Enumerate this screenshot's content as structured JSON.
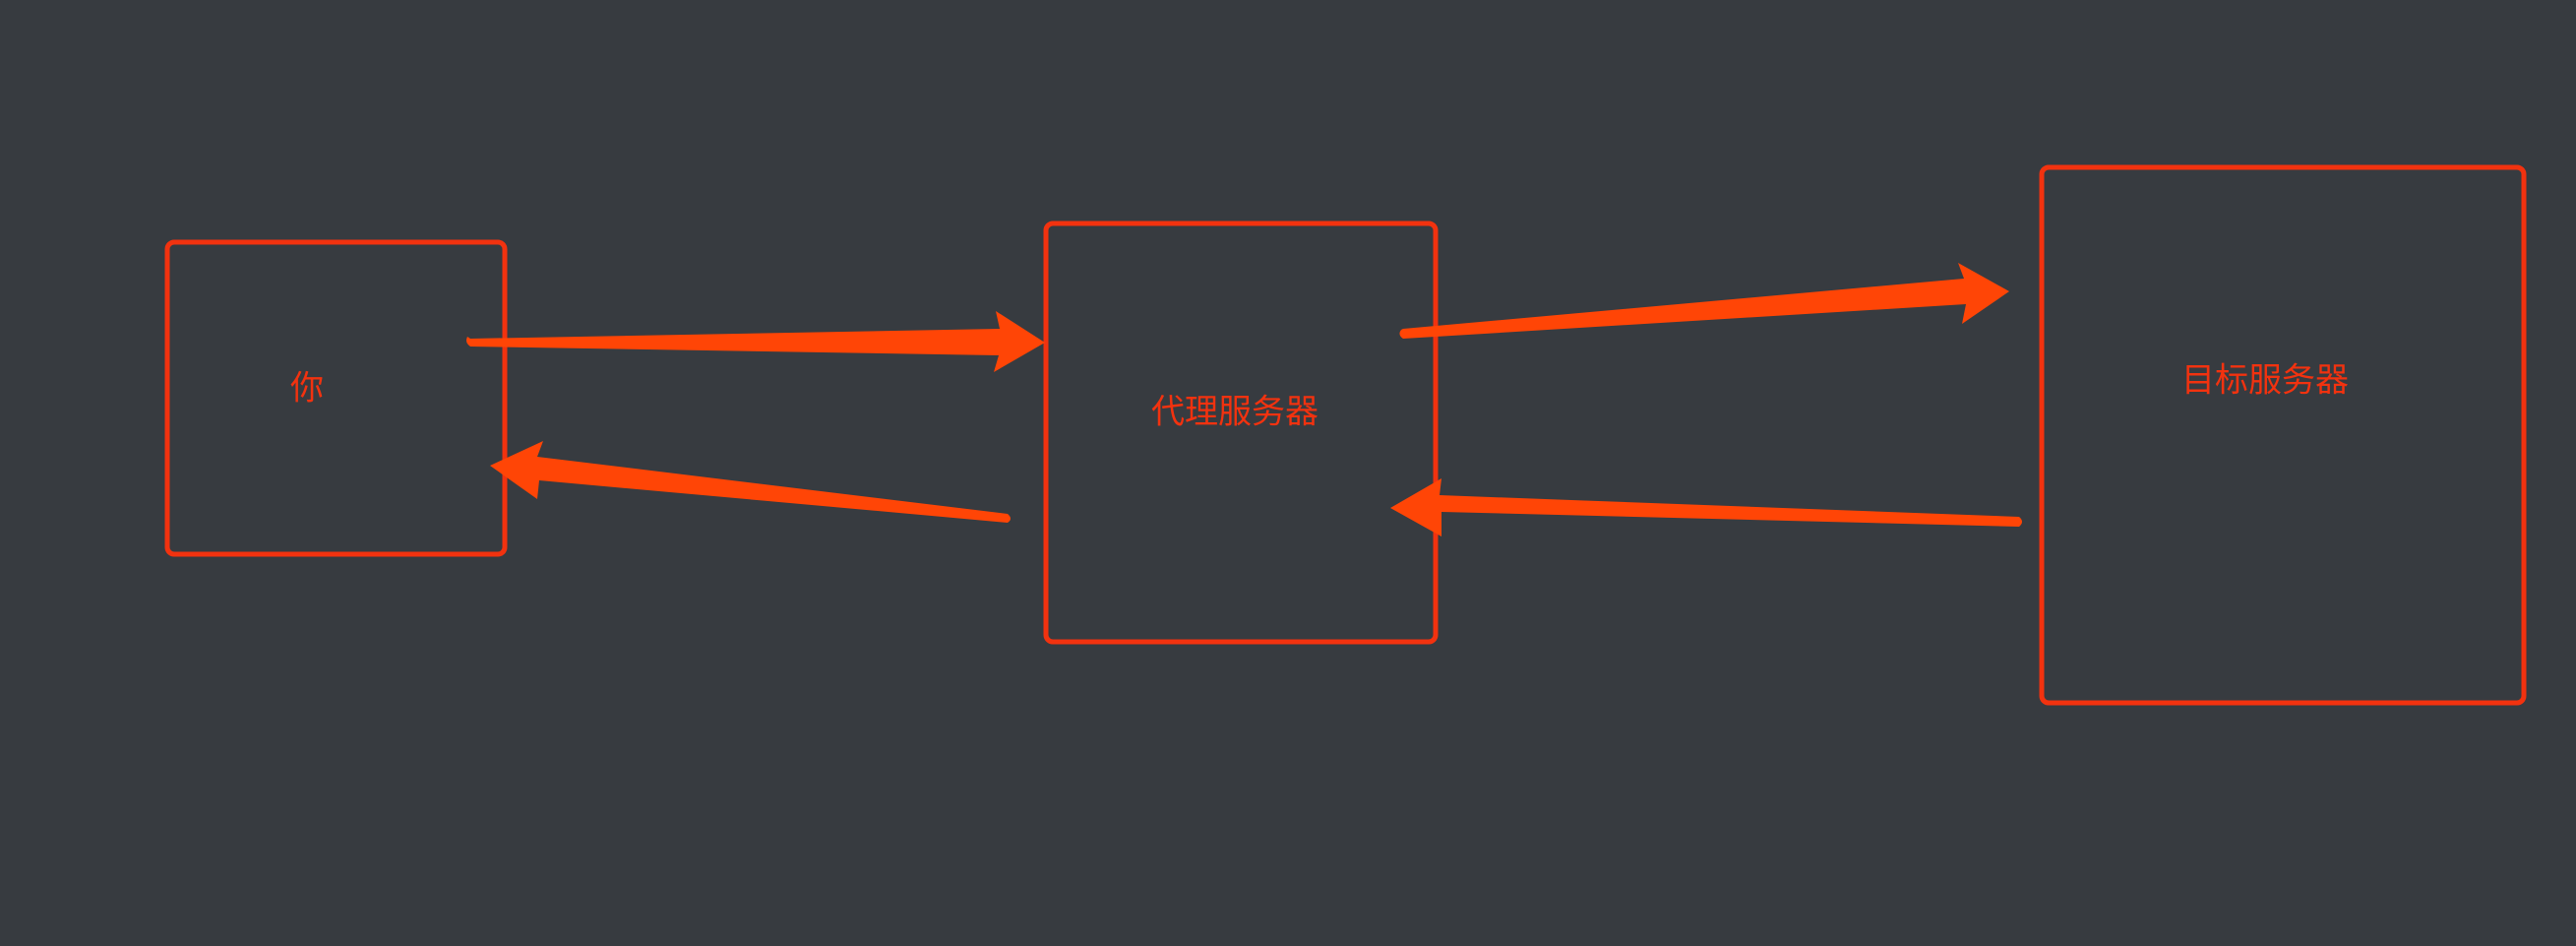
{
  "colors": {
    "background": "#373b40",
    "box_stroke": "#f2320f",
    "arrow_fill": "#ff4506",
    "label_text": "#f2320f"
  },
  "nodes": {
    "client": {
      "label": "你"
    },
    "proxy": {
      "label": "代理服务器"
    },
    "target": {
      "label": "目标服务器"
    }
  },
  "edges": [
    {
      "from": "client",
      "to": "proxy"
    },
    {
      "from": "proxy",
      "to": "client"
    },
    {
      "from": "proxy",
      "to": "target"
    },
    {
      "from": "target",
      "to": "proxy"
    }
  ]
}
